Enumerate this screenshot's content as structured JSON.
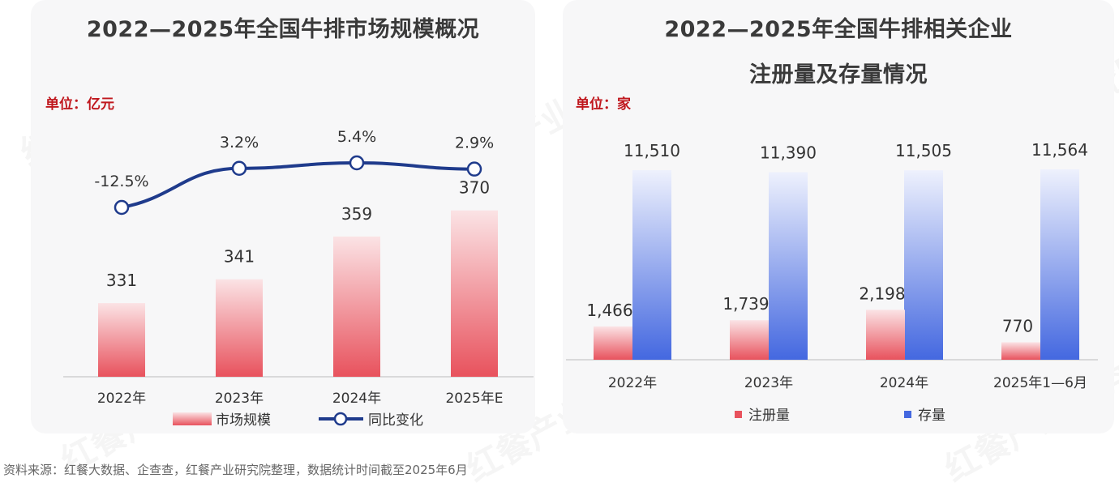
{
  "watermark": "红餐产业研究院",
  "source": "资料来源：红餐大数据、企查查，红餐产业研究院整理，数据统计时间截至2025年6月",
  "colors": {
    "bar_red_top": "#fbe3e5",
    "bar_red_bottom": "#e8525d",
    "bar_blue_top": "#eef1fd",
    "bar_blue_bottom": "#4468e0",
    "line_navy": "#1f3b8c",
    "unit_red": "#c0181e"
  },
  "left_chart": {
    "title": "2022—2025年全国牛排市场规模概况",
    "unit": "单位：亿元",
    "legend_bar": "市场规模",
    "legend_line": "同比变化"
  },
  "right_chart": {
    "title_line1": "2022—2025年全国牛排相关企业",
    "title_line2": "注册量及存量情况",
    "unit": "单位：家",
    "legend_a": "注册量",
    "legend_b": "存量"
  },
  "chart_data": [
    {
      "type": "bar",
      "title": "2022—2025年全国牛排市场规模概况",
      "categories": [
        "2022年",
        "2023年",
        "2024年",
        "2025年E"
      ],
      "series": [
        {
          "name": "市场规模",
          "type": "bar",
          "values": [
            331,
            341,
            359,
            370
          ],
          "labels": [
            "331",
            "341",
            "359",
            "370"
          ]
        },
        {
          "name": "同比变化",
          "type": "line",
          "values": [
            -12.5,
            3.2,
            5.4,
            2.9
          ],
          "labels": [
            "-12.5%",
            "3.2%",
            "5.4%",
            "2.9%"
          ]
        }
      ],
      "ylim": [
        300,
        375
      ],
      "legend": "bottom"
    },
    {
      "type": "bar",
      "title": "2022—2025年全国牛排相关企业注册量及存量情况",
      "categories": [
        "2022年",
        "2023年",
        "2024年",
        "2025年1—6月"
      ],
      "series": [
        {
          "name": "注册量",
          "values": [
            1466,
            1739,
            2198,
            770
          ],
          "labels": [
            "1,466",
            "1,739",
            "2,198",
            "770"
          ]
        },
        {
          "name": "存量",
          "values": [
            11510,
            11390,
            11505,
            11564
          ],
          "labels": [
            "11,510",
            "11,390",
            "11,505",
            "11,564"
          ]
        }
      ],
      "ylim": [
        0,
        12000
      ],
      "legend": "bottom"
    }
  ]
}
